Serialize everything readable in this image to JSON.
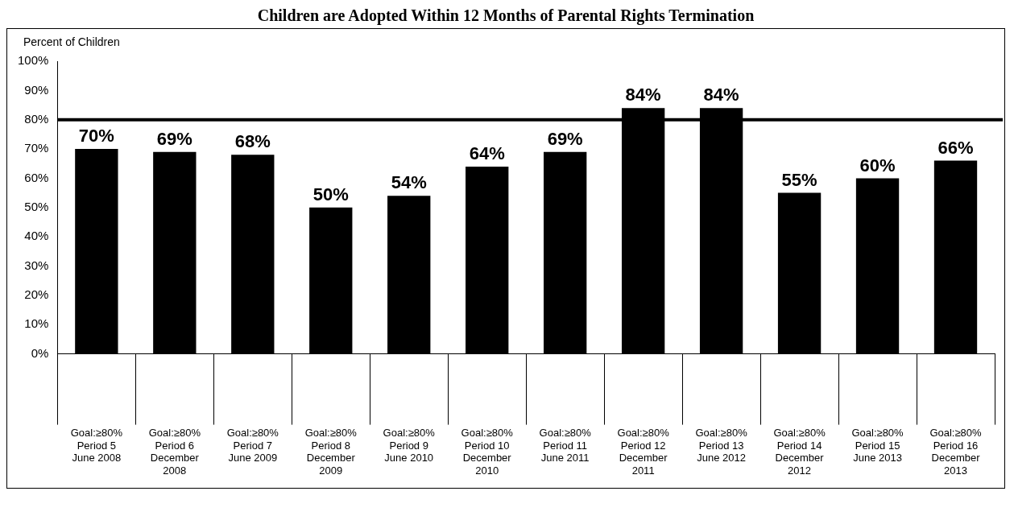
{
  "chart_data": {
    "type": "bar",
    "title": "Children are Adopted Within 12 Months of Parental Rights Termination",
    "ylabel": "Percent of Children",
    "categories": [
      "Goal:≥80%\nPeriod 5\nJune 2008",
      "Goal:≥80%\nPeriod 6\nDecember\n2008",
      "Goal:≥80%\nPeriod 7\nJune 2009",
      "Goal:≥80%\nPeriod 8\nDecember\n2009",
      "Goal:≥80%\nPeriod 9\nJune 2010",
      "Goal:≥80%\nPeriod 10\nDecember\n2010",
      "Goal:≥80%\nPeriod 11\nJune 2011",
      "Goal:≥80%\nPeriod 12\nDecember\n2011",
      "Goal:≥80%\nPeriod 13\nJune 2012",
      "Goal:≥80%\nPeriod 14\nDecember\n2012",
      "Goal:≥80%\nPeriod 15\nJune 2013",
      "Goal:≥80%\nPeriod 16\nDecember\n2013"
    ],
    "values": [
      70,
      69,
      68,
      50,
      54,
      64,
      69,
      84,
      84,
      55,
      60,
      66
    ],
    "color": "#000000",
    "value_labels": [
      "70%",
      "69%",
      "68%",
      "50%",
      "54%",
      "64%",
      "69%",
      "84%",
      "84%",
      "55%",
      "60%",
      "66%"
    ],
    "ylim": [
      0,
      100
    ],
    "yticks": [
      {
        "value": 0,
        "label": "0%"
      },
      {
        "value": 10,
        "label": "10%"
      },
      {
        "value": 20,
        "label": "20%"
      },
      {
        "value": 30,
        "label": "30%"
      },
      {
        "value": 40,
        "label": "40%"
      },
      {
        "value": 50,
        "label": "50%"
      },
      {
        "value": 60,
        "label": "60%"
      },
      {
        "value": 70,
        "label": "70%"
      },
      {
        "value": 80,
        "label": "80%"
      },
      {
        "value": 90,
        "label": "90%"
      },
      {
        "value": 100,
        "label": "100%"
      }
    ],
    "ref_lines": [
      {
        "axis": "y",
        "value": 80,
        "color": "#000000"
      }
    ],
    "grid": false,
    "legend": false
  }
}
